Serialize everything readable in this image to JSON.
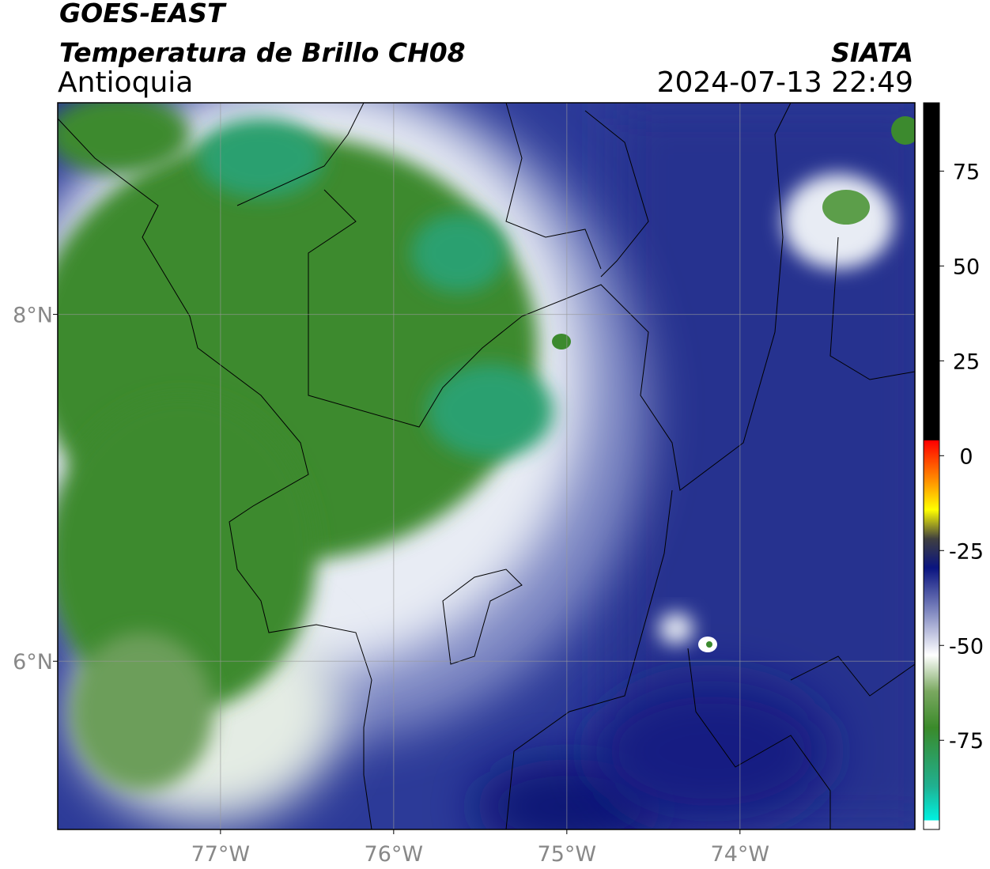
{
  "header": {
    "satellite": "GOES-EAST",
    "product": "Temperatura de Brillo CH08",
    "region": "Antioquia",
    "source": "SIATA",
    "datetime": "2024-07-13 22:49"
  },
  "map": {
    "xlim": [
      -77.94,
      -72.99
    ],
    "ylim": [
      5.03,
      9.22
    ],
    "xticks": [
      {
        "value": -77,
        "label": "77°W"
      },
      {
        "value": -76,
        "label": "76°W"
      },
      {
        "value": -75,
        "label": "75°W"
      },
      {
        "value": -74,
        "label": "74°W"
      }
    ],
    "yticks": [
      {
        "value": 8,
        "label": "8°N"
      },
      {
        "value": 6,
        "label": "6°N"
      }
    ],
    "grid": true
  },
  "colorbar": {
    "lim": [
      -98.5,
      93
    ],
    "ticks": [
      75,
      50,
      25,
      0,
      -25,
      -50,
      -75
    ]
  }
}
